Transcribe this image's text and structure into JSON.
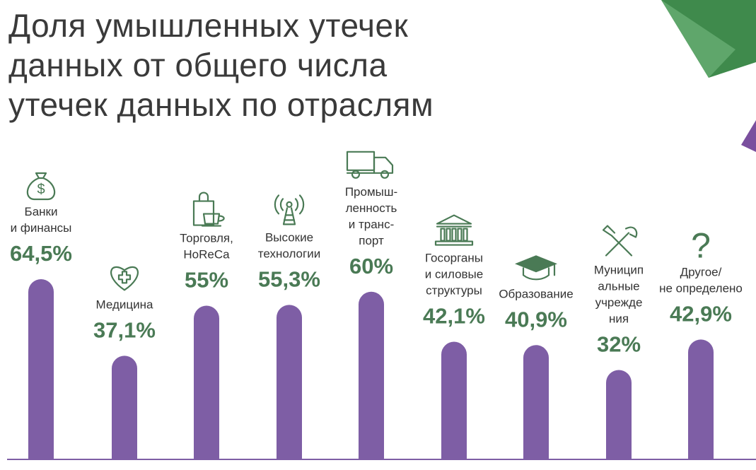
{
  "title_lines": [
    "Доля умышленных утечек",
    "данных от общего числа",
    "утечек данных по отраслям"
  ],
  "colors": {
    "bar": "#7e5ea5",
    "value": "#4a7a55",
    "label": "#333333",
    "accent_green": "#3f8a4c",
    "accent_purple": "#7a4f9e"
  },
  "chart_data": {
    "type": "bar",
    "categories": [
      "Банки и финансы",
      "Медицина",
      "Торговля, HoReCa",
      "Высокие технологии",
      "Промышленность и транспорт",
      "Госорганы и силовые структуры",
      "Образование",
      "Муниципальные учреждения",
      "Другое/ не определено"
    ],
    "label_lines": [
      [
        "Банки",
        "и финансы"
      ],
      [
        "Медицина"
      ],
      [
        "Торговля,",
        "HoReCa"
      ],
      [
        "Высокие",
        "технологии"
      ],
      [
        "Промыш-",
        "ленность",
        "и транс-",
        "порт"
      ],
      [
        "Госорганы",
        "и силовые",
        "структуры"
      ],
      [
        "Образование"
      ],
      [
        "Муницип",
        "альные",
        "учрежде",
        "ния"
      ],
      [
        "Другое/",
        "не определено"
      ]
    ],
    "values": [
      64.5,
      37.1,
      55,
      55.3,
      60,
      42.1,
      40.9,
      32,
      42.9
    ],
    "value_labels": [
      "64,5%",
      "37,1%",
      "55%",
      "55,3%",
      "60%",
      "42,1%",
      "40,9%",
      "32%",
      "42,9%"
    ],
    "icons": [
      "money-bag-icon",
      "heart-cross-icon",
      "shopping-bag-cup-icon",
      "antenna-icon",
      "truck-icon",
      "government-building-icon",
      "graduation-cap-icon",
      "tools-icon",
      "question-mark-icon"
    ],
    "unit": "%",
    "ylim": [
      0,
      64.5
    ]
  }
}
